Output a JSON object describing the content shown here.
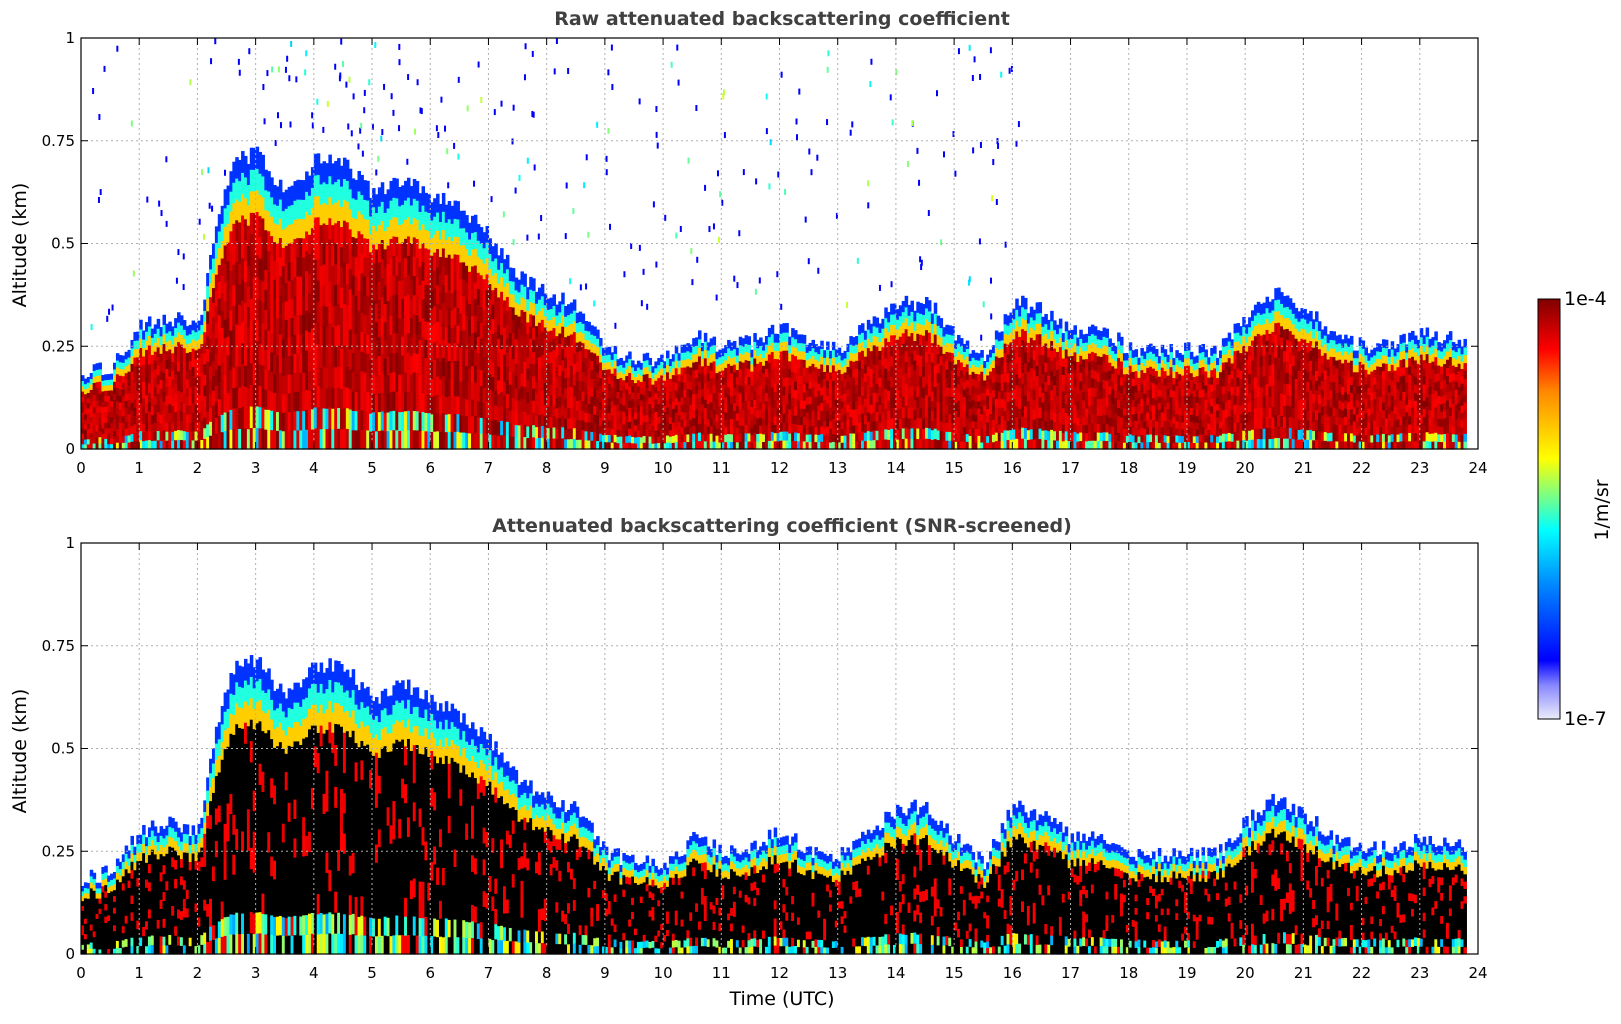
{
  "chart_data": [
    {
      "type": "heatmap",
      "title": "Raw attenuated backscattering coefficient",
      "xlabel": "",
      "ylabel": "Altitude (km)",
      "xlim": [
        0,
        24
      ],
      "ylim": [
        0,
        1
      ],
      "xticks": [
        "0",
        "1",
        "2",
        "3",
        "4",
        "5",
        "6",
        "7",
        "8",
        "9",
        "10",
        "11",
        "12",
        "13",
        "14",
        "15",
        "16",
        "17",
        "18",
        "19",
        "20",
        "21",
        "22",
        "23",
        "24"
      ],
      "yticks": [
        "0",
        "0.25",
        "0.5",
        "0.75",
        "1"
      ],
      "grid": true,
      "screened": false,
      "layer_top_km": {
        "x": [
          0,
          0.5,
          1,
          1.5,
          2,
          2.3,
          2.6,
          3,
          3.5,
          4,
          4.5,
          5,
          5.5,
          6,
          6.5,
          7,
          7.5,
          8,
          8.5,
          9,
          9.5,
          10,
          10.5,
          11,
          11.5,
          12,
          12.5,
          13,
          13.5,
          14,
          14.5,
          15,
          15.5,
          16,
          16.5,
          17,
          17.5,
          18,
          18.5,
          19,
          19.5,
          20,
          20.5,
          21,
          21.5,
          22,
          22.5,
          23,
          23.8
        ],
        "y": [
          0.18,
          0.2,
          0.3,
          0.32,
          0.3,
          0.55,
          0.7,
          0.72,
          0.62,
          0.7,
          0.7,
          0.62,
          0.66,
          0.62,
          0.58,
          0.52,
          0.42,
          0.38,
          0.35,
          0.25,
          0.22,
          0.22,
          0.28,
          0.25,
          0.26,
          0.3,
          0.25,
          0.24,
          0.3,
          0.35,
          0.36,
          0.28,
          0.22,
          0.36,
          0.34,
          0.28,
          0.3,
          0.24,
          0.24,
          0.24,
          0.24,
          0.32,
          0.38,
          0.34,
          0.28,
          0.25,
          0.26,
          0.28,
          0.26
        ]
      }
    },
    {
      "type": "heatmap",
      "title": "Attenuated backscattering coefficient (SNR-screened)",
      "xlabel": "Time (UTC)",
      "ylabel": "Altitude (km)",
      "xlim": [
        0,
        24
      ],
      "ylim": [
        0,
        1
      ],
      "xticks": [
        "0",
        "1",
        "2",
        "3",
        "4",
        "5",
        "6",
        "7",
        "8",
        "9",
        "10",
        "11",
        "12",
        "13",
        "14",
        "15",
        "16",
        "17",
        "18",
        "19",
        "20",
        "21",
        "22",
        "23",
        "24"
      ],
      "yticks": [
        "0",
        "0.25",
        "0.5",
        "0.75",
        "1"
      ],
      "grid": true,
      "screened": true,
      "layer_top_km": {
        "x": [
          0,
          0.5,
          1,
          1.5,
          2,
          2.3,
          2.6,
          3,
          3.5,
          4,
          4.5,
          5,
          5.5,
          6,
          6.5,
          7,
          7.5,
          8,
          8.5,
          9,
          9.5,
          10,
          10.5,
          11,
          11.5,
          12,
          12.5,
          13,
          13.5,
          14,
          14.5,
          15,
          15.5,
          16,
          16.5,
          17,
          17.5,
          18,
          18.5,
          19,
          19.5,
          20,
          20.5,
          21,
          21.5,
          22,
          22.5,
          23,
          23.8
        ],
        "y": [
          0.18,
          0.2,
          0.3,
          0.32,
          0.3,
          0.55,
          0.7,
          0.72,
          0.62,
          0.7,
          0.7,
          0.62,
          0.66,
          0.62,
          0.58,
          0.52,
          0.42,
          0.38,
          0.35,
          0.25,
          0.22,
          0.22,
          0.28,
          0.25,
          0.26,
          0.3,
          0.25,
          0.24,
          0.3,
          0.35,
          0.36,
          0.28,
          0.22,
          0.36,
          0.34,
          0.28,
          0.3,
          0.24,
          0.24,
          0.24,
          0.24,
          0.32,
          0.38,
          0.34,
          0.28,
          0.25,
          0.26,
          0.28,
          0.26
        ]
      }
    }
  ],
  "colorbar": {
    "label": "1/m/sr",
    "max_label": "1e-4",
    "min_label": "1e-7",
    "colormap": "jet",
    "scale": "log",
    "range": [
      1e-07,
      0.0001
    ],
    "colors": [
      "#e8e8f8",
      "#0000ff",
      "#00ffff",
      "#ffff00",
      "#ff0000",
      "#800000"
    ]
  }
}
